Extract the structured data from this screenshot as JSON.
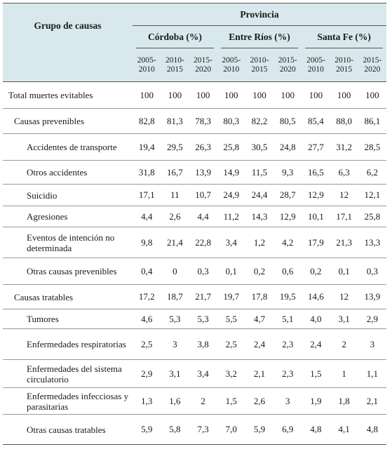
{
  "header": {
    "group_label": "Grupo de causas",
    "province_label": "Provincia",
    "provinces": [
      "Córdoba (%)",
      "Entre Ríos (%)",
      "Santa Fe (%)"
    ],
    "periods": [
      [
        "2005-",
        "2010"
      ],
      [
        "2010-",
        "2015"
      ],
      [
        "2015-",
        "2020"
      ],
      [
        "2005-",
        "2010"
      ],
      [
        "2010-",
        "2015"
      ],
      [
        "2015-",
        "2020"
      ],
      [
        "2005-",
        "2010"
      ],
      [
        "2010-",
        "2015"
      ],
      [
        "2015-",
        "2020"
      ]
    ]
  },
  "rows": [
    {
      "label": "Total muertes evitables",
      "level": 0,
      "height": 38,
      "values": [
        "100",
        "100",
        "100",
        "100",
        "100",
        "100",
        "100",
        "100",
        "100"
      ]
    },
    {
      "label": "Causas prevenibles",
      "level": 1,
      "height": 36,
      "values": [
        "82,8",
        "81,3",
        "78,3",
        "80,3",
        "82,2",
        "80,5",
        "85,4",
        "88,0",
        "86,1"
      ]
    },
    {
      "label": "Accidentes de transporte",
      "level": 2,
      "height": 38,
      "values": [
        "19,4",
        "29,5",
        "26,3",
        "25,8",
        "30,5",
        "24,8",
        "27,7",
        "31,2",
        "28,5"
      ]
    },
    {
      "label": "Otros accidentes",
      "level": 2,
      "height": 34,
      "values": [
        "31,8",
        "16,7",
        "13,9",
        "14,9",
        "11,5",
        "9,3",
        "16,5",
        "6,3",
        "6,2"
      ]
    },
    {
      "label": "Suicidio",
      "level": 2,
      "height": 31,
      "values": [
        "17,1",
        "11",
        "10,7",
        "24,9",
        "24,4",
        "28,7",
        "12,9",
        "12",
        "12,1"
      ]
    },
    {
      "label": "Agresiones",
      "level": 2,
      "height": 30,
      "values": [
        "4,4",
        "2,6",
        "4,4",
        "11,2",
        "14,3",
        "12,9",
        "10,1",
        "17,1",
        "25,8"
      ]
    },
    {
      "label": "Eventos de intención no determinada",
      "level": 2,
      "height": 44,
      "values": [
        "9,8",
        "21,4",
        "22,8",
        "3,4",
        "1,2",
        "4,2",
        "17,9",
        "21,3",
        "13,3"
      ]
    },
    {
      "label": "Otras causas prevenibles",
      "level": 2,
      "height": 38,
      "values": [
        "0,4",
        "0",
        "0,3",
        "0,1",
        "0,2",
        "0,6",
        "0,2",
        "0,1",
        "0,3"
      ]
    },
    {
      "label": "Causas tratables",
      "level": 1,
      "height": 35,
      "values": [
        "17,2",
        "18,7",
        "21,7",
        "19,7",
        "17,8",
        "19,5",
        "14,6",
        "12",
        "13,9"
      ]
    },
    {
      "label": "Tumores",
      "level": 2,
      "height": 28,
      "values": [
        "4,6",
        "5,3",
        "5,3",
        "5,5",
        "4,7",
        "5,1",
        "4,0",
        "3,1",
        "2,9"
      ]
    },
    {
      "label": "Enfermedades respiratorias",
      "level": 2,
      "height": 44,
      "values": [
        "2,5",
        "3",
        "3,8",
        "2,5",
        "2,4",
        "2,3",
        "2,4",
        "2",
        "3"
      ]
    },
    {
      "label": "Enfermedades del sistema circulatorio",
      "level": 2,
      "height": 40,
      "values": [
        "2,9",
        "3,1",
        "3,4",
        "3,2",
        "2,1",
        "2,3",
        "1,5",
        "1",
        "1,1"
      ]
    },
    {
      "label": "Enfermedades infecciosas y parasitarias",
      "level": 2,
      "height": 38,
      "values": [
        "1,3",
        "1,6",
        "2",
        "1,5",
        "2,6",
        "3",
        "1,9",
        "1,8",
        "2,1"
      ]
    },
    {
      "label": "Otras causas tratables",
      "level": 2,
      "height": 43,
      "values": [
        "5,9",
        "5,8",
        "7,3",
        "7,0",
        "5,9",
        "6,9",
        "4,8",
        "4,1",
        "4,8"
      ]
    }
  ]
}
